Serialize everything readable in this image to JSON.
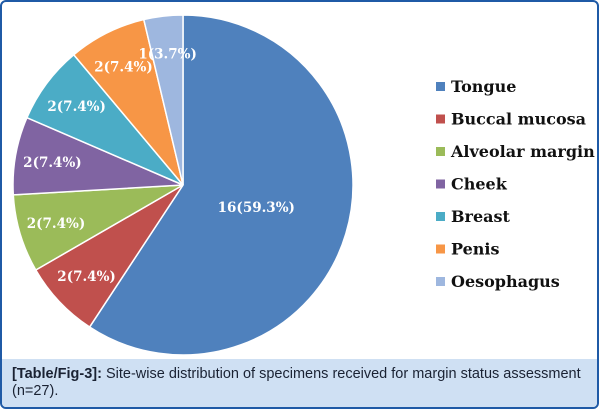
{
  "chart_data": {
    "type": "pie",
    "total": 27,
    "categories": [
      "Tongue",
      "Buccal mucosa",
      "Alveolar margin",
      "Cheek",
      "Breast",
      "Penis",
      "Oesophagus"
    ],
    "values": [
      16,
      2,
      2,
      2,
      2,
      2,
      1
    ],
    "data_labels": [
      "16(59.3%)",
      "2(7.4%)",
      "2(7.4%)",
      "2(7.4%)",
      "2(7.4%)",
      "2(7.4%)",
      "1(3.7%)"
    ],
    "colors": [
      "#4f81bd",
      "#c0504d",
      "#9bbb59",
      "#8064a2",
      "#4bacc6",
      "#f79646",
      "#9eb7df"
    ],
    "legend_position": "right",
    "start": "top",
    "direction": "clockwise"
  },
  "caption": {
    "ref": "[Table/Fig-3]:",
    "text": "Site-wise distribution of specimens received for margin status assessment (n=27)."
  }
}
